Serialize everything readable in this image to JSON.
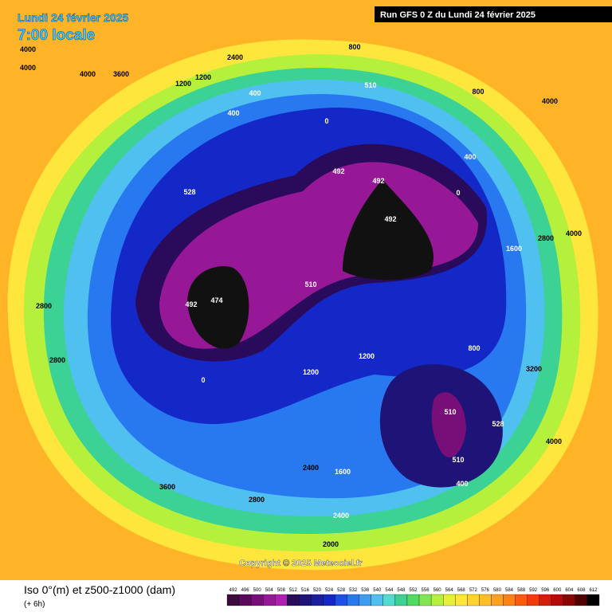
{
  "header": {
    "date": "Lundi 24 février 2025",
    "time": "7:00 locale",
    "run": "Run GFS 0 Z du Lundi 24 février 2025"
  },
  "copyright": "Copyright © 2025 Meteociel.fr",
  "legend": {
    "title": "Iso 0°(m) et z500-z1000 (dam)",
    "step": "(+ 6h)",
    "ticks": [
      492,
      496,
      500,
      504,
      508,
      512,
      516,
      520,
      524,
      528,
      532,
      536,
      540,
      544,
      548,
      552,
      556,
      560,
      564,
      568,
      572,
      576,
      580,
      584,
      588,
      592,
      596,
      600,
      604,
      608,
      612
    ],
    "colors": [
      "#3c0a3c",
      "#5a0a5a",
      "#780e78",
      "#961896",
      "#b020b0",
      "#2a0a5a",
      "#1e1478",
      "#1a1ea0",
      "#1428c8",
      "#1e50e6",
      "#2878f0",
      "#3c9cf0",
      "#50c0f0",
      "#50dcd0",
      "#3cd296",
      "#50dc64",
      "#82e650",
      "#b4f03c",
      "#e6f03c",
      "#ffe63c",
      "#ffd232",
      "#ffbe28",
      "#ffa01e",
      "#ff8214",
      "#ff5a0a",
      "#f03c0a",
      "#d21e0a",
      "#b40a0a",
      "#8c0505",
      "#500000",
      "#000000"
    ]
  },
  "contour_labels": [
    "4000",
    "4000",
    "4000",
    "3600",
    "4000",
    "1200",
    "1200",
    "800",
    "800",
    "400",
    "400",
    "400",
    "0",
    "0",
    "0",
    "510",
    "492",
    "492",
    "492",
    "474",
    "492",
    "510",
    "510",
    "510",
    "528",
    "528",
    "2400",
    "2800",
    "2800",
    "3600",
    "2000",
    "2400",
    "1600",
    "1200",
    "800",
    "400",
    "1600",
    "2800",
    "4000",
    "3200",
    "4000",
    "2800",
    "2400",
    "1200"
  ]
}
